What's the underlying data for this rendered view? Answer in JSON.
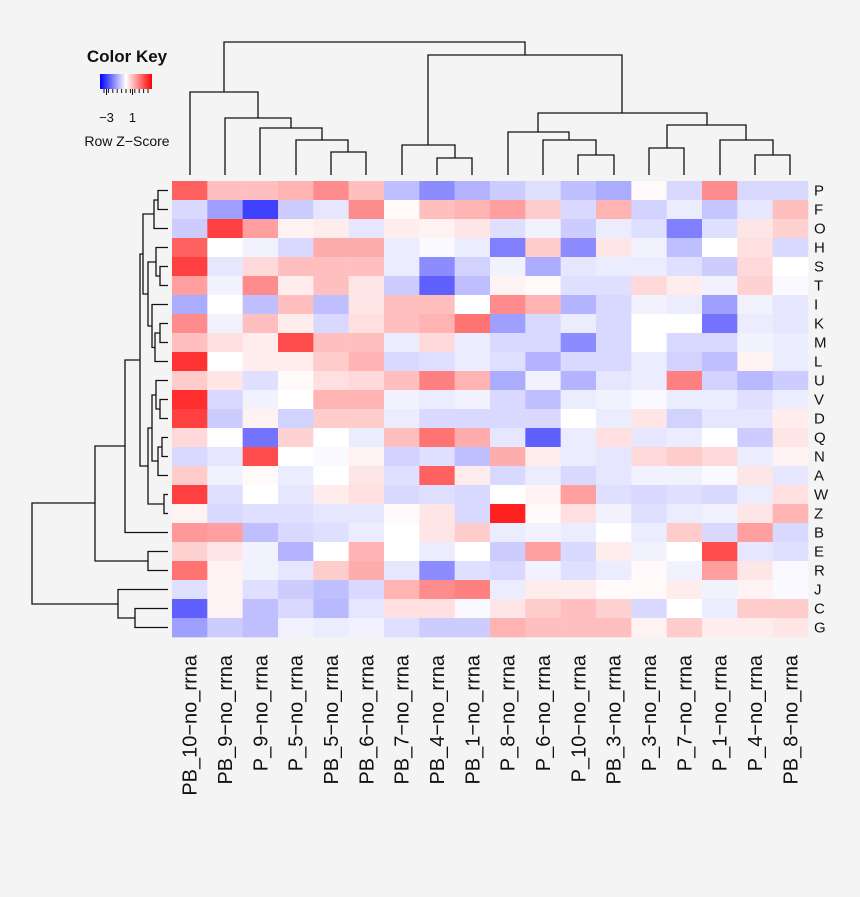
{
  "chart_data": {
    "type": "heatmap",
    "key_title": "Color Key",
    "key_label": "Row Z−Score",
    "zlim": [
      -4,
      4
    ],
    "zticks": [
      {
        "value": -3,
        "label": "−3"
      },
      1
    ],
    "colors": {
      "low": "#0000ff",
      "mid": "#ffffff",
      "high": "#ff0000"
    },
    "columns": [
      "PB_10−no_rrna",
      "PB_9−no_rrna",
      "P_9−no_rrna",
      "P_5−no_rrna",
      "PB_5−no_rrna",
      "PB_6−no_rrna",
      "PB_7−no_rrna",
      "PB_4−no_rrna",
      "PB_1−no_rrna",
      "P_8−no_rrna",
      "P_6−no_rrna",
      "P_10−no_rrna",
      "PB_3−no_rrna",
      "P_3−no_rrna",
      "P_7−no_rrna",
      "P_1−no_rrna",
      "P_4−no_rrna",
      "PB_8−no_rrna"
    ],
    "rows": [
      "P",
      "F",
      "O",
      "H",
      "S",
      "T",
      "I",
      "K",
      "M",
      "L",
      "U",
      "V",
      "D",
      "Q",
      "N",
      "A",
      "W",
      "Z",
      "B",
      "E",
      "R",
      "J",
      "C",
      "G"
    ],
    "values": [
      [
        2.5,
        1,
        1,
        1.2,
        1.8,
        1,
        -1,
        -1.8,
        -1.2,
        -0.8,
        -0.5,
        -1,
        -1.3,
        0.1,
        -0.6,
        1.8,
        -0.6,
        -0.6
      ],
      [
        -0.6,
        -1.5,
        -3,
        -0.8,
        -0.4,
        1.8,
        0.1,
        1,
        1.2,
        1.5,
        0.8,
        -0.6,
        1.2,
        -0.7,
        -0.3,
        -0.9,
        -0.4,
        1
      ],
      [
        -0.8,
        3,
        1.5,
        0.2,
        0.3,
        -0.4,
        0.3,
        0.2,
        0.4,
        -0.5,
        -0.2,
        -0.8,
        -0.3,
        -0.5,
        -2,
        -0.5,
        0.4,
        0.7
      ],
      [
        2.5,
        0,
        -0.2,
        -0.6,
        1.3,
        1.3,
        -0.3,
        -0.1,
        -0.3,
        -2,
        0.8,
        -1.8,
        0.4,
        -0.2,
        -1,
        0,
        0.5,
        -0.6
      ],
      [
        3,
        -0.4,
        0.6,
        1,
        1,
        1,
        -0.3,
        -1.8,
        -0.7,
        -0.2,
        -1.3,
        -0.4,
        -0.3,
        -0.3,
        -0.5,
        -0.8,
        0.6,
        0
      ],
      [
        1.5,
        -0.2,
        1.8,
        0.3,
        1,
        0.4,
        -0.8,
        -2.5,
        -1,
        0.2,
        0.1,
        -0.5,
        -0.5,
        0.6,
        0.3,
        -0.2,
        0.7,
        -0.1
      ],
      [
        -1.3,
        0,
        -1,
        1,
        -1,
        0.4,
        1,
        1,
        0,
        1.8,
        1.2,
        -1.2,
        -0.6,
        -0.2,
        -0.3,
        -1.5,
        -0.2,
        -0.4
      ],
      [
        1.8,
        -0.2,
        1,
        0.3,
        -0.6,
        0.5,
        1,
        1.2,
        2.2,
        -1.5,
        -0.6,
        -0.3,
        -0.6,
        0,
        0,
        -2.2,
        -0.3,
        -0.4
      ],
      [
        1,
        0.5,
        0.3,
        2.8,
        1,
        1,
        -0.3,
        0.6,
        -0.3,
        -0.6,
        -0.6,
        -1.8,
        -0.6,
        0,
        -0.6,
        -0.6,
        -0.2,
        -0.3
      ],
      [
        3.2,
        0,
        0.3,
        0.3,
        0.8,
        1.2,
        -0.6,
        -0.5,
        -0.3,
        -0.5,
        -1.2,
        -0.6,
        -0.6,
        -0.3,
        -0.7,
        -1,
        0.2,
        -0.3
      ],
      [
        0.8,
        0.4,
        -0.5,
        0.1,
        0.5,
        0.6,
        1,
        2,
        1.2,
        -1.3,
        -0.2,
        -1.2,
        -0.4,
        -0.3,
        2,
        -0.7,
        -1.1,
        -0.8
      ],
      [
        3.3,
        -0.6,
        -0.2,
        0,
        1.2,
        1.2,
        -0.2,
        -0.3,
        -0.2,
        -0.6,
        -1,
        -0.3,
        -0.2,
        -0.1,
        -0.3,
        -0.3,
        -0.5,
        -0.3
      ],
      [
        3,
        -0.8,
        0.2,
        -0.7,
        0.8,
        0.8,
        -0.3,
        -0.6,
        -0.6,
        -0.6,
        -0.6,
        0,
        -0.3,
        0.4,
        -0.7,
        -0.4,
        -0.4,
        0.3
      ],
      [
        0.6,
        0,
        -2.2,
        0.7,
        0,
        -0.3,
        1,
        2.2,
        1.3,
        -0.4,
        -2.5,
        -0.3,
        0.5,
        -0.4,
        -0.3,
        0,
        -0.8,
        0.4
      ],
      [
        -0.6,
        -0.4,
        2.8,
        0,
        -0.1,
        0.2,
        -0.7,
        -0.5,
        -1,
        1.3,
        0.3,
        -0.3,
        -0.4,
        0.6,
        0.8,
        0.6,
        -0.3,
        0.2
      ],
      [
        0.8,
        -0.2,
        0.1,
        -0.3,
        0,
        0.4,
        -0.5,
        2.5,
        0.3,
        -0.6,
        -0.3,
        -0.6,
        -0.4,
        -0.2,
        -0.2,
        -0.1,
        0.4,
        -0.4
      ],
      [
        3,
        -0.5,
        0,
        -0.4,
        0.3,
        0.5,
        -0.6,
        -0.5,
        -0.6,
        0,
        0.2,
        1.5,
        -0.5,
        -0.6,
        -0.5,
        -0.6,
        -0.3,
        0.5
      ],
      [
        0.2,
        -0.6,
        -0.5,
        -0.5,
        -0.4,
        -0.4,
        0.1,
        0.4,
        -0.6,
        3.5,
        0.1,
        0.5,
        -0.2,
        -0.5,
        -0.3,
        -0.2,
        0.4,
        1.2
      ],
      [
        1.6,
        1.5,
        -1,
        -0.6,
        -0.5,
        -0.3,
        0,
        0.4,
        0.8,
        -0.3,
        -0.2,
        -0.3,
        0,
        -0.3,
        0.8,
        -0.6,
        1.5,
        -0.6
      ],
      [
        0.7,
        0.4,
        -0.2,
        -1.2,
        0,
        1.2,
        0,
        -0.3,
        0,
        -0.8,
        1.5,
        -0.6,
        0.3,
        -0.2,
        0,
        2.8,
        -0.4,
        -0.5
      ],
      [
        2.2,
        0.2,
        -0.2,
        -0.4,
        0.8,
        1.3,
        -0.4,
        -1.8,
        -0.5,
        -0.6,
        -0.2,
        -0.5,
        -0.3,
        0.1,
        -0.2,
        1.5,
        0.4,
        -0.1
      ],
      [
        -0.5,
        0.2,
        -0.5,
        -0.8,
        -1,
        -0.6,
        1.2,
        1.8,
        2,
        -0.3,
        0.3,
        0.3,
        0.1,
        0.1,
        0.3,
        -0.2,
        0.2,
        -0.1
      ],
      [
        -2.5,
        0.2,
        -1,
        -0.6,
        -1.1,
        -0.4,
        0.5,
        0.5,
        -0.1,
        0.4,
        0.8,
        1,
        0.7,
        -0.6,
        0,
        -0.3,
        0.8,
        0.8
      ],
      [
        -1.5,
        -0.8,
        -1,
        -0.2,
        -0.3,
        -0.2,
        -0.5,
        -0.8,
        -0.8,
        1.2,
        1,
        1,
        1,
        0.2,
        0.8,
        0.3,
        0.3,
        0.4
      ]
    ]
  }
}
